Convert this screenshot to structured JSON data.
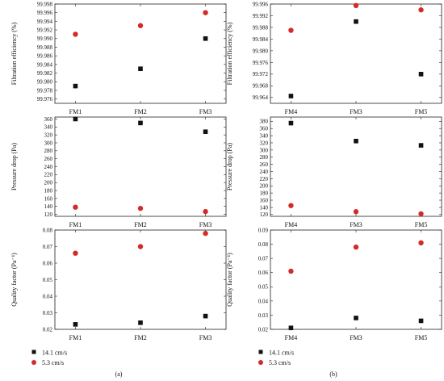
{
  "colors": {
    "series1": "#111111",
    "series2": "#d42a2a"
  },
  "legend": {
    "series": [
      {
        "label": "14.1 cm/s",
        "marker": "square"
      },
      {
        "label": "5.3 cm/s",
        "marker": "circle"
      }
    ]
  },
  "panel_labels": [
    "(a)",
    "(b)"
  ],
  "chart_data": [
    {
      "type": "scatter",
      "panel": "a",
      "row": 0,
      "categories": [
        "FM1",
        "FM2",
        "FM3"
      ],
      "ylabel": "Filtration efficiency (%)",
      "ylim": [
        99.975,
        99.998
      ],
      "yticks": [
        99.976,
        99.978,
        99.98,
        99.982,
        99.984,
        99.986,
        99.988,
        99.99,
        99.992,
        99.994,
        99.996,
        99.998
      ],
      "ytick_labels": [
        "99.976",
        "99.978",
        "99.980",
        "99.982",
        "99.984",
        "99.986",
        "99.988",
        "99.990",
        "99.992",
        "99.994",
        "99.996",
        "99.998"
      ],
      "series": [
        {
          "name": "14.1 cm/s",
          "values": [
            99.979,
            99.983,
            99.99
          ]
        },
        {
          "name": "5.3 cm/s",
          "values": [
            99.991,
            99.993,
            99.996
          ]
        }
      ]
    },
    {
      "type": "scatter",
      "panel": "b",
      "row": 0,
      "categories": [
        "FM4",
        "FM3",
        "FM5"
      ],
      "ylabel": "Filtration efficiency (%)",
      "ylim": [
        99.962,
        99.996
      ],
      "yticks": [
        99.964,
        99.968,
        99.972,
        99.976,
        99.98,
        99.984,
        99.988,
        99.992,
        99.996
      ],
      "ytick_labels": [
        "99.964",
        "99.968",
        "99.972",
        "99.976",
        "99.980",
        "99.984",
        "99.988",
        "99.992",
        "99.996"
      ],
      "series": [
        {
          "name": "14.1 cm/s",
          "values": [
            99.9645,
            99.99,
            99.972
          ]
        },
        {
          "name": "5.3 cm/s",
          "values": [
            99.987,
            99.9955,
            99.994
          ]
        }
      ]
    },
    {
      "type": "scatter",
      "panel": "a",
      "row": 1,
      "categories": [
        "FM1",
        "FM2",
        "FM3"
      ],
      "ylabel": "Pressure drop (Pa)",
      "ylim": [
        115,
        365
      ],
      "yticks": [
        120,
        140,
        160,
        180,
        200,
        220,
        240,
        260,
        280,
        300,
        320,
        340,
        360
      ],
      "ytick_labels": [
        "120",
        "140",
        "160",
        "180",
        "200",
        "220",
        "240",
        "260",
        "280",
        "300",
        "320",
        "340",
        "360"
      ],
      "series": [
        {
          "name": "14.1 cm/s",
          "values": [
            360,
            350,
            328
          ]
        },
        {
          "name": "5.3 cm/s",
          "values": [
            138,
            135,
            127
          ]
        }
      ]
    },
    {
      "type": "scatter",
      "panel": "b",
      "row": 1,
      "categories": [
        "FM4",
        "FM3",
        "FM5"
      ],
      "ylabel": "Pressure drop (Pa)",
      "ylim": [
        115,
        392
      ],
      "yticks": [
        120,
        140,
        160,
        180,
        200,
        220,
        240,
        260,
        280,
        300,
        320,
        340,
        360,
        380
      ],
      "ytick_labels": [
        "120",
        "140",
        "160",
        "180",
        "200",
        "220",
        "240",
        "260",
        "280",
        "300",
        "320",
        "340",
        "360",
        "380"
      ],
      "series": [
        {
          "name": "14.1 cm/s",
          "values": [
            375,
            325,
            313
          ]
        },
        {
          "name": "5.3 cm/s",
          "values": [
            145,
            128,
            122
          ]
        }
      ]
    },
    {
      "type": "scatter",
      "panel": "a",
      "row": 2,
      "categories": [
        "FM1",
        "FM2",
        "FM3"
      ],
      "ylabel": "Quality factor (Pa⁻¹)",
      "ylim": [
        0.02,
        0.08
      ],
      "yticks": [
        0.02,
        0.03,
        0.04,
        0.05,
        0.06,
        0.07,
        0.08
      ],
      "ytick_labels": [
        "0.02",
        "0.03",
        "0.04",
        "0.05",
        "0.06",
        "0.07",
        "0.08"
      ],
      "series": [
        {
          "name": "14.1 cm/s",
          "values": [
            0.023,
            0.024,
            0.028
          ]
        },
        {
          "name": "5.3 cm/s",
          "values": [
            0.066,
            0.07,
            0.078
          ]
        }
      ]
    },
    {
      "type": "scatter",
      "panel": "b",
      "row": 2,
      "categories": [
        "FM4",
        "FM3",
        "FM5"
      ],
      "ylabel": "Quality factor (Pa⁻¹)",
      "ylim": [
        0.02,
        0.09
      ],
      "yticks": [
        0.02,
        0.03,
        0.04,
        0.05,
        0.06,
        0.07,
        0.08,
        0.09
      ],
      "ytick_labels": [
        "0.02",
        "0.03",
        "0.04",
        "0.05",
        "0.06",
        "0.07",
        "0.08",
        "0.09"
      ],
      "series": [
        {
          "name": "14.1 cm/s",
          "values": [
            0.021,
            0.028,
            0.026
          ]
        },
        {
          "name": "5.3 cm/s",
          "values": [
            0.061,
            0.078,
            0.081
          ]
        }
      ]
    }
  ]
}
